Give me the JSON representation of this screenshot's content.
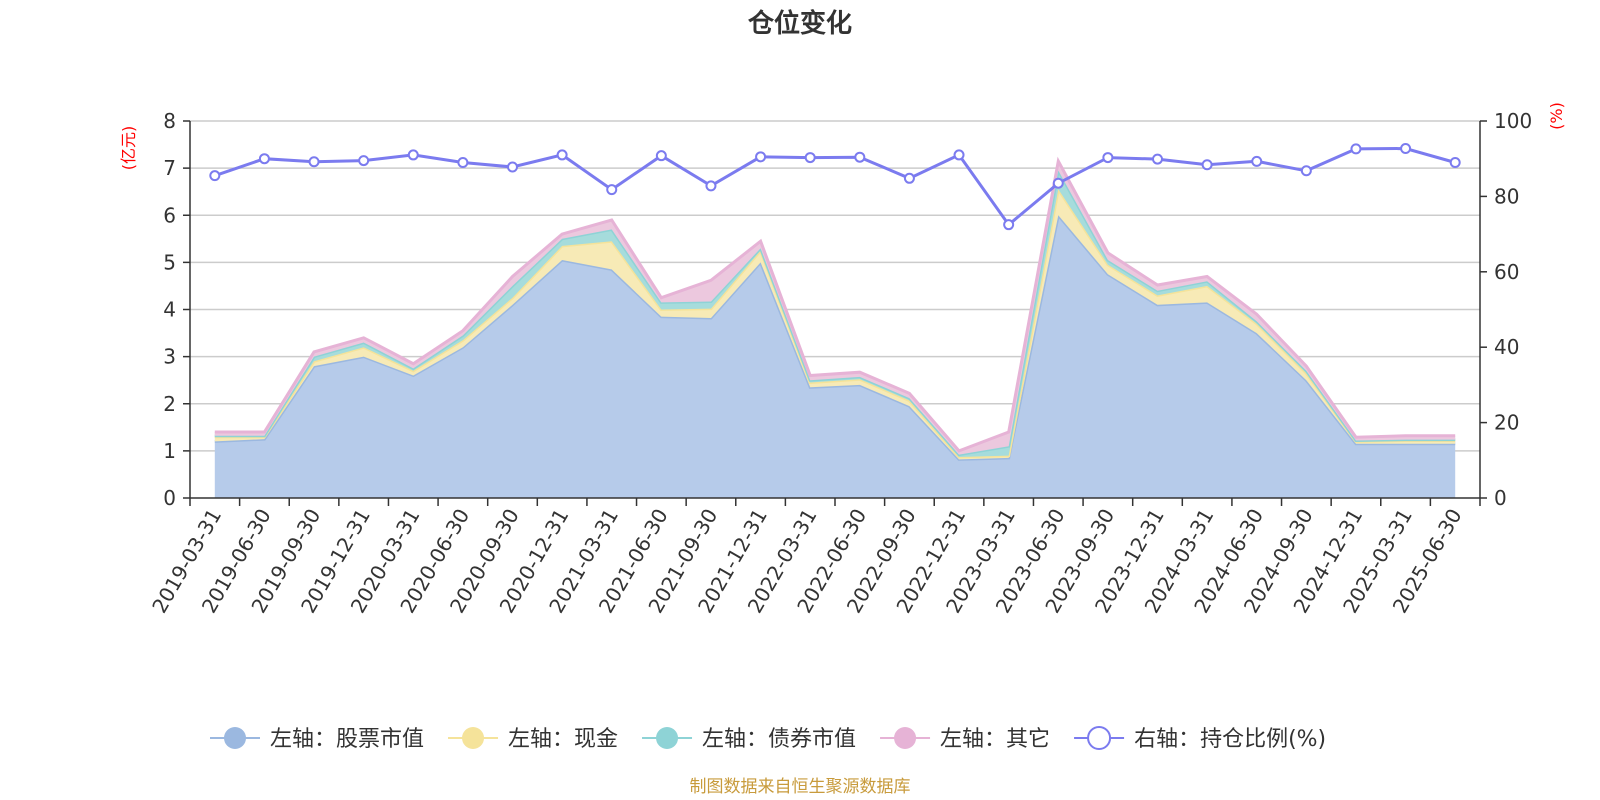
{
  "chart_data": {
    "type": "area",
    "title": "仓位变化",
    "x": [
      "2019-03-31",
      "2019-06-30",
      "2019-09-30",
      "2019-12-31",
      "2020-03-31",
      "2020-06-30",
      "2020-09-30",
      "2020-12-31",
      "2021-03-31",
      "2021-06-30",
      "2021-09-30",
      "2021-12-31",
      "2022-03-31",
      "2022-06-30",
      "2022-09-30",
      "2022-12-31",
      "2023-03-31",
      "2023-06-30",
      "2023-09-30",
      "2023-12-31",
      "2024-03-31",
      "2024-06-30",
      "2024-09-30",
      "2024-12-31",
      "2025-03-31",
      "2025-06-30"
    ],
    "left_axis": {
      "unit": "(亿元)",
      "ylim": [
        0,
        8
      ],
      "ticks": [
        "0",
        "1",
        "2",
        "3",
        "4",
        "5",
        "6",
        "7",
        "8"
      ]
    },
    "right_axis": {
      "unit": "(%)",
      "ylim": [
        0,
        100
      ],
      "ticks": [
        "0",
        "20",
        "40",
        "60",
        "80",
        "100"
      ]
    },
    "series": [
      {
        "name": "左轴：股票市值",
        "axis": "left",
        "color": "#9bb8e0",
        "fill": "#b6cbea",
        "values": [
          1.2,
          1.25,
          2.8,
          3.0,
          2.6,
          3.2,
          4.1,
          5.05,
          4.85,
          3.85,
          3.82,
          5.0,
          2.35,
          2.4,
          1.95,
          0.82,
          0.85,
          6.0,
          4.75,
          4.1,
          4.15,
          3.5,
          2.5,
          1.15,
          1.15,
          1.15
        ]
      },
      {
        "name": "左轴：现金",
        "axis": "left",
        "color": "#f5e39a",
        "fill": "#f7eab6",
        "values": [
          0.1,
          0.05,
          0.1,
          0.2,
          0.1,
          0.15,
          0.15,
          0.3,
          0.6,
          0.15,
          0.2,
          0.25,
          0.1,
          0.12,
          0.12,
          0.05,
          0.05,
          0.55,
          0.2,
          0.2,
          0.35,
          0.2,
          0.15,
          0.05,
          0.07,
          0.07
        ]
      },
      {
        "name": "左轴：债券市值",
        "axis": "left",
        "color": "#8ed3d6",
        "fill": "#a6dcdc",
        "values": [
          0.02,
          0.02,
          0.1,
          0.1,
          0.05,
          0.1,
          0.25,
          0.15,
          0.25,
          0.15,
          0.15,
          0.05,
          0.05,
          0.05,
          0.05,
          0.05,
          0.2,
          0.4,
          0.1,
          0.1,
          0.1,
          0.05,
          0.05,
          0.02,
          0.02,
          0.02
        ]
      },
      {
        "name": "左轴：其它",
        "axis": "left",
        "color": "#e6b3d6",
        "fill": "#ecc8de",
        "values": [
          0.08,
          0.08,
          0.1,
          0.1,
          0.1,
          0.1,
          0.2,
          0.1,
          0.2,
          0.1,
          0.45,
          0.15,
          0.1,
          0.1,
          0.1,
          0.08,
          0.3,
          0.2,
          0.15,
          0.12,
          0.1,
          0.15,
          0.1,
          0.07,
          0.08,
          0.08
        ]
      },
      {
        "name": "右轴：持仓比例(%)",
        "axis": "right",
        "color": "#7b7bef",
        "values": [
          85.5,
          90,
          89.2,
          89.5,
          91,
          89,
          87.8,
          91,
          81.8,
          90.8,
          82.8,
          90.5,
          90.3,
          90.4,
          84.8,
          91,
          72.5,
          83.5,
          90.3,
          89.9,
          88.4,
          89.3,
          86.8,
          92.6,
          92.7,
          89
        ]
      }
    ],
    "legend_position": "bottom",
    "grid": true
  },
  "footer": {
    "source": "制图数据来自恒生聚源数据库"
  },
  "colors": {
    "unit_label": "#ff0000",
    "source_text": "#c89b3c",
    "grid": "#cccccc"
  }
}
